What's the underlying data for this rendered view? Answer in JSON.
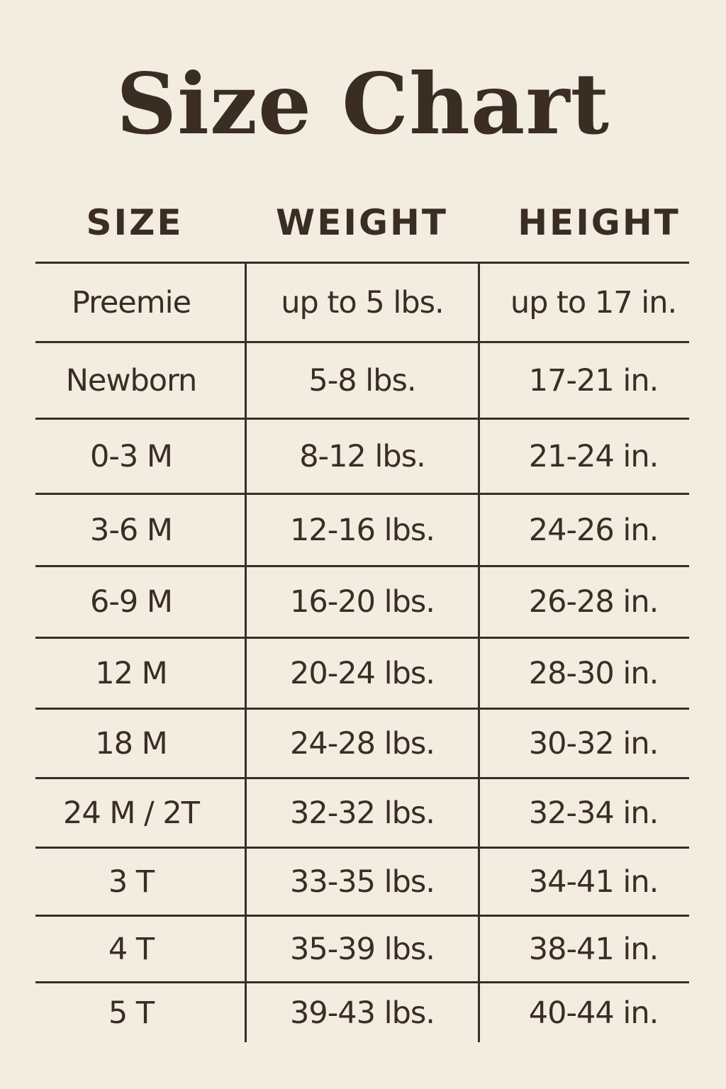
{
  "title": "Size Chart",
  "columns": [
    "SIZE",
    "WEIGHT",
    "HEIGHT"
  ],
  "rows": [
    [
      "Preemie",
      "up to 5 lbs.",
      "up to 17 in."
    ],
    [
      "Newborn",
      "5-8 lbs.",
      "17-21 in."
    ],
    [
      "0-3 M",
      "8-12 lbs.",
      "21-24 in."
    ],
    [
      "3-6 M",
      "12-16 lbs.",
      "24-26 in."
    ],
    [
      "6-9 M",
      "16-20 lbs.",
      "26-28 in."
    ],
    [
      "12 M",
      "20-24 lbs.",
      "28-30 in."
    ],
    [
      "18 M",
      "24-28 lbs.",
      "30-32 in."
    ],
    [
      "24 M / 2T",
      "32-32 lbs.",
      "32-34 in."
    ],
    [
      "3 T",
      "33-35 lbs.",
      "34-41 in."
    ],
    [
      "4 T",
      "35-39 lbs.",
      "38-41 in."
    ],
    [
      "5 T",
      "39-43 lbs.",
      "40-44 in."
    ]
  ],
  "colors": {
    "background": "#f3ece1",
    "text": "#3a2d24"
  }
}
